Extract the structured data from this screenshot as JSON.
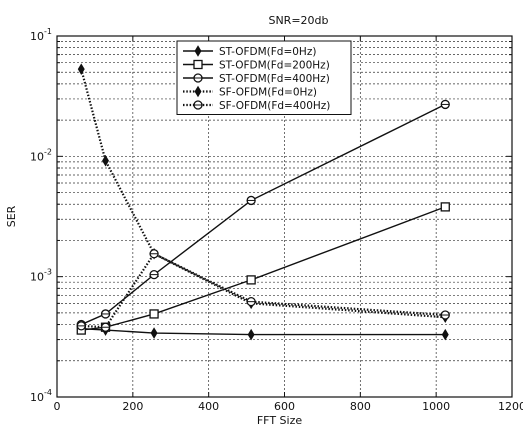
{
  "chart_data": {
    "type": "line",
    "title": "SNR=20db",
    "xlabel": "FFT Size",
    "ylabel": "SER",
    "xlim": [
      0,
      1200
    ],
    "ylim": [
      0.0001,
      0.1
    ],
    "yscale": "log",
    "grid": true,
    "legend_position": "top-center",
    "x_ticks": [
      0,
      200,
      400,
      600,
      800,
      1000,
      1200
    ],
    "x_tick_labels": [
      "0",
      "200",
      "400",
      "600",
      "800",
      "1000",
      "1200"
    ],
    "y_ticks": [
      0.0001,
      0.001,
      0.01,
      0.1
    ],
    "y_tick_labels": [
      {
        "base": "10",
        "exp": "-4"
      },
      {
        "base": "10",
        "exp": "-3"
      },
      {
        "base": "10",
        "exp": "-2"
      },
      {
        "base": "10",
        "exp": "-1"
      }
    ],
    "series": [
      {
        "name": "ST-OFDM(Fd=0Hz)",
        "marker": "star",
        "dash": "solid",
        "x": [
          64,
          128,
          256,
          512,
          1024
        ],
        "y": [
          0.00037,
          0.00036,
          0.00034,
          0.00033,
          0.00033
        ]
      },
      {
        "name": "ST-OFDM(Fd=200Hz)",
        "marker": "square",
        "dash": "solid",
        "x": [
          64,
          128,
          256,
          512,
          1024
        ],
        "y": [
          0.00036,
          0.00038,
          0.00049,
          0.00094,
          0.0038
        ]
      },
      {
        "name": "ST-OFDM(Fd=400Hz)",
        "marker": "circle",
        "dash": "solid",
        "x": [
          64,
          128,
          256,
          512,
          1024
        ],
        "y": [
          0.0004,
          0.00049,
          0.00104,
          0.0043,
          0.027
        ]
      },
      {
        "name": "SF-OFDM(Fd=0Hz)",
        "marker": "star",
        "dash": "dotted",
        "x": [
          64,
          128,
          256,
          512,
          1024
        ],
        "y": [
          0.053,
          0.0092,
          0.00155,
          0.0006,
          0.00046
        ]
      },
      {
        "name": "SF-OFDM(Fd=400Hz)",
        "marker": "circle",
        "dash": "dotted",
        "x": [
          64,
          128,
          256,
          512,
          1024
        ],
        "y": [
          0.00039,
          0.00038,
          0.00155,
          0.00062,
          0.00048
        ]
      }
    ]
  }
}
